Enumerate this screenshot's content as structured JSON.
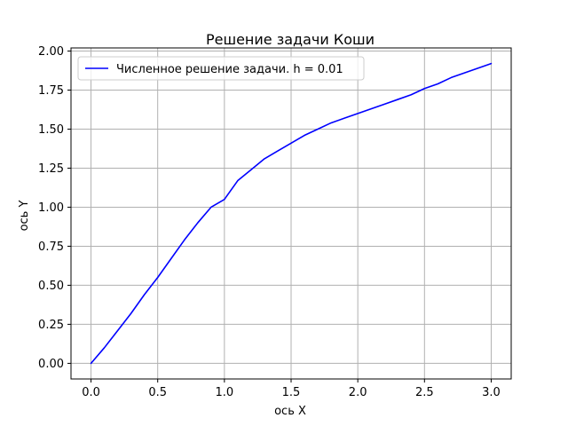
{
  "chart_data": {
    "type": "line",
    "title": "Решение задачи Коши",
    "xlabel": "ось X",
    "ylabel": "ось Y",
    "xlim": [
      -0.15,
      3.15
    ],
    "ylim": [
      -0.1,
      2.02
    ],
    "xticks": [
      0.0,
      0.5,
      1.0,
      1.5,
      2.0,
      2.5,
      3.0
    ],
    "xtick_labels": [
      "0.0",
      "0.5",
      "1.0",
      "1.5",
      "2.0",
      "2.5",
      "3.0"
    ],
    "yticks": [
      0.0,
      0.25,
      0.5,
      0.75,
      1.0,
      1.25,
      1.5,
      1.75,
      2.0
    ],
    "ytick_labels": [
      "0.00",
      "0.25",
      "0.50",
      "0.75",
      "1.00",
      "1.25",
      "1.50",
      "1.75",
      "2.00"
    ],
    "grid": true,
    "legend": "upper-left",
    "series": [
      {
        "name": "Численное решение задачи. h = 0.01",
        "color": "#0000ff",
        "x": [
          0.0,
          0.1,
          0.2,
          0.3,
          0.4,
          0.5,
          0.6,
          0.7,
          0.8,
          0.9,
          1.0,
          1.1,
          1.2,
          1.3,
          1.4,
          1.5,
          1.6,
          1.7,
          1.8,
          1.9,
          2.0,
          2.1,
          2.2,
          2.3,
          2.4,
          2.5,
          2.6,
          2.7,
          2.8,
          2.9,
          3.0
        ],
        "y": [
          0.0,
          0.1,
          0.21,
          0.32,
          0.44,
          0.55,
          0.67,
          0.79,
          0.9,
          1.0,
          1.05,
          1.17,
          1.24,
          1.31,
          1.36,
          1.41,
          1.46,
          1.5,
          1.54,
          1.57,
          1.6,
          1.63,
          1.66,
          1.69,
          1.72,
          1.76,
          1.79,
          1.83,
          1.86,
          1.89,
          1.92
        ]
      }
    ]
  }
}
